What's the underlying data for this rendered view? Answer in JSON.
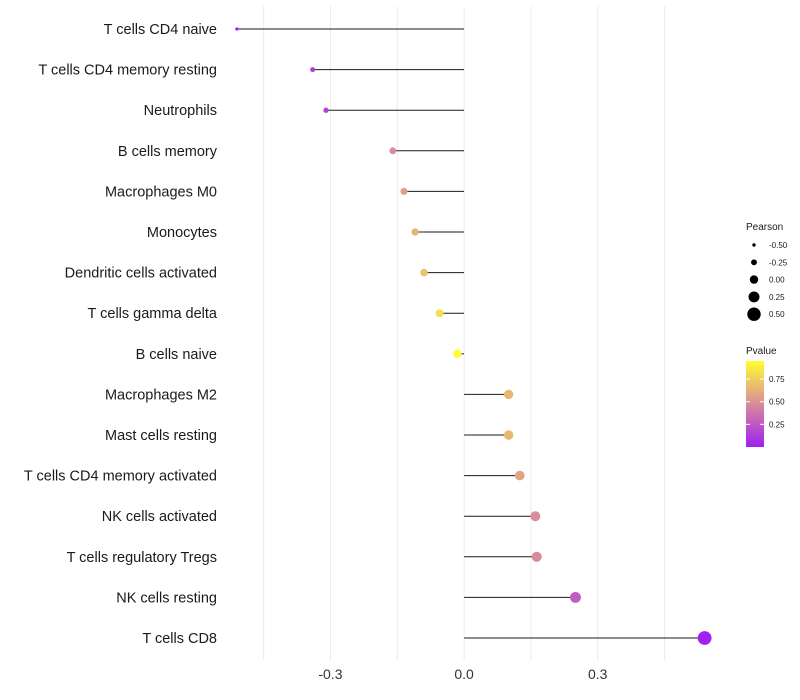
{
  "chart_data": {
    "type": "lollipop",
    "title": "",
    "xlabel": "",
    "ylabel": "",
    "xlim": [
      -0.53,
      0.57
    ],
    "xticks": [
      -0.3,
      0.0,
      0.3
    ],
    "xtick_labels": [
      "-0.3",
      "0.0",
      "0.3"
    ],
    "grid": true,
    "points": [
      {
        "label": "T cells CD4 naive",
        "pearson": -0.51,
        "pvalue": 0.005
      },
      {
        "label": "T cells CD4 memory resting",
        "pearson": -0.34,
        "pvalue": 0.13
      },
      {
        "label": "Neutrophils",
        "pearson": -0.31,
        "pvalue": 0.16
      },
      {
        "label": "B cells memory",
        "pearson": -0.16,
        "pvalue": 0.48
      },
      {
        "label": "Macrophages M0",
        "pearson": -0.135,
        "pvalue": 0.55
      },
      {
        "label": "Monocytes",
        "pearson": -0.11,
        "pvalue": 0.64
      },
      {
        "label": "Dendritic cells activated",
        "pearson": -0.09,
        "pvalue": 0.69
      },
      {
        "label": "T cells gamma delta",
        "pearson": -0.055,
        "pvalue": 0.82
      },
      {
        "label": "B cells naive",
        "pearson": -0.015,
        "pvalue": 0.95
      },
      {
        "label": "Macrophages M2",
        "pearson": 0.1,
        "pvalue": 0.66
      },
      {
        "label": "Mast cells resting",
        "pearson": 0.1,
        "pvalue": 0.66
      },
      {
        "label": "T cells CD4 memory activated",
        "pearson": 0.125,
        "pvalue": 0.58
      },
      {
        "label": "NK cells activated",
        "pearson": 0.16,
        "pvalue": 0.48
      },
      {
        "label": "T cells regulatory  Tregs ",
        "pearson": 0.163,
        "pvalue": 0.47
      },
      {
        "label": "NK cells resting",
        "pearson": 0.25,
        "pvalue": 0.27
      },
      {
        "label": "T cells CD8",
        "pearson": 0.54,
        "pvalue": 0.01
      }
    ],
    "legend_size": {
      "title": "Pearson",
      "entries": [
        -0.5,
        -0.25,
        0.0,
        0.25,
        0.5
      ],
      "entry_labels": [
        "-0.50",
        "-0.25",
        "0.00",
        "0.25",
        "0.50"
      ]
    },
    "legend_color": {
      "title": "Pvalue",
      "range": [
        0.0,
        0.95
      ],
      "breaks": [
        0.25,
        0.5,
        0.75
      ],
      "break_labels": [
        "0.25",
        "0.50",
        "0.75"
      ],
      "low_color": "#a020f0",
      "mid_color": "#d98b9c",
      "high_color": "#ffff2e"
    },
    "legend_position": "right"
  }
}
